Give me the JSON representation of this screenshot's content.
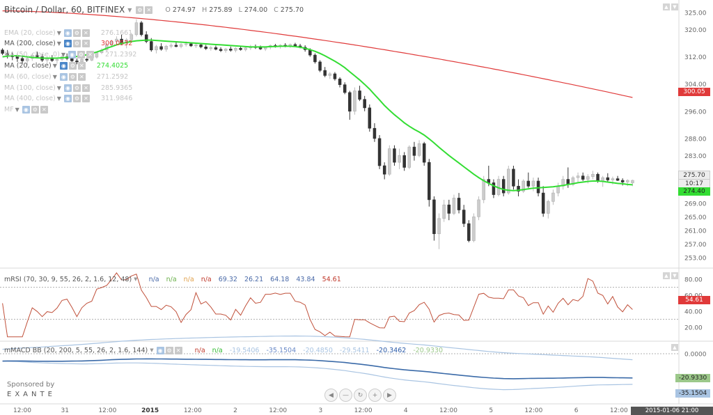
{
  "header": {
    "title": "Bitcoin / Dollar, 60, BITFINEX",
    "ohlc": {
      "o_label": "O",
      "o": "274.97",
      "h_label": "H",
      "h": "275.89",
      "l_label": "L",
      "l": "274.00",
      "c_label": "C",
      "c": "275.70"
    }
  },
  "legend": [
    {
      "name": "EMA (20, close)",
      "value": "276.1661",
      "faded": true
    },
    {
      "name": "MA (200, close)",
      "value": "300.0532",
      "faded": false,
      "color": "#e03a3a"
    },
    {
      "name": "MA (50, close, 0)",
      "value": "271.2392",
      "faded": true
    },
    {
      "name": "MA (20, close)",
      "value": "274.4025",
      "faded": false,
      "color": "#33dd33"
    },
    {
      "name": "MA (60, close)",
      "value": "271.2592",
      "faded": true
    },
    {
      "name": "MA (100, close)",
      "value": "285.9365",
      "faded": true
    },
    {
      "name": "MA (400, close)",
      "value": "311.9846",
      "faded": true
    },
    {
      "name": "MF",
      "value": "",
      "faded": true
    }
  ],
  "rsi_legend": {
    "name": "mRSI (70, 30, 9, 55, 26, 2, 1.6, 12, 48)",
    "values": [
      {
        "t": "n/a",
        "c": "#4a6aa8"
      },
      {
        "t": "n/a",
        "c": "#6ab04a"
      },
      {
        "t": "n/a",
        "c": "#e0a04a"
      },
      {
        "t": "n/a",
        "c": "#c0392b"
      },
      {
        "t": "69.32",
        "c": "#4a6aa8"
      },
      {
        "t": "26.21",
        "c": "#4a6aa8"
      },
      {
        "t": "64.18",
        "c": "#4a6aa8"
      },
      {
        "t": "43.84",
        "c": "#4a6aa8"
      },
      {
        "t": "54.61",
        "c": "#c0392b"
      }
    ]
  },
  "macd_legend": {
    "name": "mMACD BB (20, 200, 5, 55, 26, 2, 1.6, 144)",
    "values": [
      {
        "t": "n/a",
        "c": "#c0392b"
      },
      {
        "t": "n/a",
        "c": "#33bb33"
      },
      {
        "t": "-19.5406",
        "c": "#a9c4e2"
      },
      {
        "t": "-35.1504",
        "c": "#6a8ac8"
      },
      {
        "t": "-20.4850",
        "c": "#a9c4e2"
      },
      {
        "t": "-29.5411",
        "c": "#a9c4e2"
      },
      {
        "t": "-20.3462",
        "c": "#2a5aa8"
      },
      {
        "t": "-20.9330",
        "c": "#9cc88a"
      }
    ]
  },
  "sponsor": {
    "line1": "Sponsored by",
    "line2": "EXANTE"
  },
  "colors": {
    "ma200": "#e03a3a",
    "ma20": "#33dd33",
    "candle_up": "#cccccc",
    "candle_down": "#333333",
    "rsi": "#c0503a",
    "macd": "#3a6aa8",
    "bb": "#a9c4e2"
  },
  "price_labels": {
    "last": "275.70",
    "countdown": "10:17",
    "ma20": "274.40",
    "ma200": "300.05",
    "rsi": "54.61",
    "macd_a": "-20.9330",
    "macd_b": "-35.1504"
  },
  "time_cursor": "2015-01-06 21:00",
  "chart_data": {
    "type": "candlestick",
    "price_axis": {
      "ticks": [
        "325.00",
        "320.00",
        "312.00",
        "304.00",
        "296.00",
        "288.00",
        "283.00",
        "277.00",
        "269.00",
        "265.00",
        "261.00",
        "257.00",
        "253.00"
      ]
    },
    "rsi_axis": {
      "ticks": [
        "80.00",
        "60.00",
        "40.00",
        "20.00"
      ],
      "levels": [
        70,
        30
      ]
    },
    "macd_axis": {
      "ticks": [
        "0.0000"
      ]
    },
    "x_ticks": [
      "12:00",
      "31",
      "12:00",
      "2015",
      "12:00",
      "2",
      "12:00",
      "3",
      "12:00",
      "4",
      "12:00",
      "5",
      "12:00",
      "6",
      "12:00"
    ],
    "ohlc": [
      [
        314,
        314.5,
        312.5,
        313
      ],
      [
        313,
        314,
        311.5,
        312.5
      ],
      [
        312.5,
        313.5,
        311,
        312
      ],
      [
        312,
        313,
        310.5,
        311.5
      ],
      [
        311.5,
        312.5,
        310,
        310.8
      ],
      [
        310.8,
        312,
        309.5,
        311.5
      ],
      [
        311.5,
        313,
        310.8,
        312.5
      ],
      [
        312.5,
        313.5,
        311.5,
        312
      ],
      [
        312,
        312.8,
        310.5,
        311
      ],
      [
        311,
        312,
        310.2,
        311.6
      ],
      [
        311.6,
        312.5,
        310.5,
        310.9
      ],
      [
        310.9,
        311.8,
        310,
        311.2
      ],
      [
        311.2,
        312.5,
        310.8,
        312
      ],
      [
        312,
        313,
        311,
        311.5
      ],
      [
        311.5,
        312.3,
        310.5,
        310.8
      ],
      [
        310.8,
        311.5,
        309.8,
        310.5
      ],
      [
        310.5,
        311.8,
        310,
        311.3
      ],
      [
        311.3,
        312,
        310.5,
        311
      ],
      [
        311,
        312.2,
        310.7,
        311.9
      ],
      [
        311.9,
        313.5,
        311.5,
        313.2
      ],
      [
        313.2,
        314.5,
        312.8,
        314
      ],
      [
        314,
        316,
        313.5,
        315.5
      ],
      [
        315.5,
        317,
        314.8,
        316.5
      ],
      [
        316.5,
        318,
        315.5,
        317.2
      ],
      [
        317.2,
        318.5,
        315.5,
        316
      ],
      [
        316,
        317.5,
        314.5,
        317
      ],
      [
        317,
        319,
        316.5,
        318.5
      ],
      [
        318.5,
        323,
        318,
        322
      ],
      [
        322,
        322.5,
        318,
        318.5
      ],
      [
        318.5,
        319.5,
        316,
        316.5
      ],
      [
        316.5,
        317.5,
        313.5,
        314
      ],
      [
        314,
        315.5,
        313,
        315
      ],
      [
        315,
        316,
        313.8,
        314.2
      ],
      [
        314.2,
        315.5,
        313.5,
        315.1
      ],
      [
        315.1,
        316,
        314.5,
        315.4
      ],
      [
        315.4,
        316.2,
        314.8,
        315
      ],
      [
        315,
        316,
        314.5,
        315.6
      ],
      [
        315.6,
        316.5,
        315,
        315.8
      ],
      [
        315.8,
        316.3,
        314.9,
        315.2
      ],
      [
        315.2,
        316,
        314.6,
        315.5
      ],
      [
        315.5,
        316,
        314.5,
        314.9
      ],
      [
        314.9,
        315.5,
        314,
        314.4
      ],
      [
        314.4,
        315.2,
        313.8,
        314.7
      ],
      [
        314.7,
        315.3,
        313.9,
        314.2
      ],
      [
        314.2,
        314.8,
        313.4,
        313.8
      ],
      [
        313.8,
        314.6,
        313.2,
        314.3
      ],
      [
        314.3,
        315,
        313.5,
        313.9
      ],
      [
        313.9,
        314.8,
        313.3,
        314.5
      ],
      [
        314.5,
        315.2,
        313.8,
        314.1
      ],
      [
        314.1,
        314.9,
        313.6,
        314.6
      ],
      [
        314.6,
        315.5,
        314,
        315
      ],
      [
        315,
        315.6,
        314.3,
        314.7
      ],
      [
        314.7,
        315.3,
        314,
        314.3
      ],
      [
        314.3,
        315,
        313.7,
        314.8
      ],
      [
        314.8,
        315.6,
        314.2,
        315.3
      ],
      [
        315.3,
        315.8,
        314.7,
        315
      ],
      [
        315,
        315.7,
        314.4,
        315.4
      ],
      [
        315.4,
        316,
        314.8,
        315.1
      ],
      [
        315.1,
        315.9,
        314.6,
        315.6
      ],
      [
        315.6,
        316.1,
        315,
        315.2
      ],
      [
        315.2,
        315.8,
        314.5,
        314.8
      ],
      [
        314.8,
        315.4,
        313.5,
        314.1
      ],
      [
        314.1,
        314.5,
        312,
        312.5
      ],
      [
        312.5,
        313,
        310,
        310.5
      ],
      [
        310.5,
        311,
        307.5,
        308
      ],
      [
        308,
        309,
        306,
        306.5
      ],
      [
        306.5,
        307.5,
        305.5,
        307
      ],
      [
        307,
        307.5,
        305,
        305.5
      ],
      [
        305.5,
        306,
        303,
        303.8
      ],
      [
        303.8,
        304.5,
        301,
        301.5
      ],
      [
        301.5,
        302,
        293.5,
        296
      ],
      [
        296,
        303,
        295,
        302
      ],
      [
        302,
        303.5,
        299,
        299.5
      ],
      [
        299.5,
        300.5,
        296,
        297
      ],
      [
        297,
        298,
        290,
        291
      ],
      [
        291,
        292.5,
        287,
        288
      ],
      [
        288,
        289,
        279,
        280
      ],
      [
        280,
        281,
        276,
        277.5
      ],
      [
        277.5,
        286,
        277,
        285
      ],
      [
        285,
        286,
        280,
        281
      ],
      [
        281,
        285,
        279,
        283
      ],
      [
        283,
        284,
        278.5,
        279.5
      ],
      [
        279.5,
        286,
        279,
        285.5
      ],
      [
        285.5,
        287,
        281.5,
        283
      ],
      [
        283,
        287.5,
        282.5,
        286.5
      ],
      [
        286.5,
        287,
        280,
        281
      ],
      [
        281,
        282,
        268,
        270
      ],
      [
        270,
        271,
        258,
        260
      ],
      [
        260,
        266,
        255.5,
        264.5
      ],
      [
        264.5,
        270,
        263.5,
        268.5
      ],
      [
        268.5,
        270,
        264,
        266
      ],
      [
        266,
        271.5,
        265.5,
        270.5
      ],
      [
        270.5,
        272,
        266,
        267
      ],
      [
        267,
        268.5,
        262,
        263
      ],
      [
        263,
        264,
        257.5,
        258
      ],
      [
        258,
        266,
        257.5,
        265
      ],
      [
        265,
        271,
        264,
        270
      ],
      [
        270,
        277,
        269,
        276
      ],
      [
        276,
        280,
        274,
        275
      ],
      [
        275,
        276,
        270.5,
        271.5
      ],
      [
        271.5,
        277,
        271,
        276
      ],
      [
        276,
        277,
        271,
        272
      ],
      [
        272,
        280,
        271.5,
        279
      ],
      [
        279,
        280,
        273,
        274
      ],
      [
        274,
        276,
        271,
        272.5
      ],
      [
        272.5,
        276,
        272,
        275.5
      ],
      [
        275.5,
        278,
        273.5,
        274
      ],
      [
        274,
        276.5,
        272.5,
        275.5
      ],
      [
        275.5,
        276.5,
        271,
        272
      ],
      [
        272,
        274,
        265,
        266
      ],
      [
        266,
        270,
        264.5,
        269.5
      ],
      [
        269.5,
        273,
        268.5,
        272
      ],
      [
        272,
        275,
        271,
        274
      ],
      [
        274,
        277,
        273,
        276
      ],
      [
        276,
        279.5,
        273.5,
        274.5
      ],
      [
        274.5,
        277,
        274,
        276.5
      ],
      [
        276.5,
        278,
        275,
        277
      ],
      [
        277,
        278,
        275.5,
        276
      ],
      [
        276,
        277.5,
        274.8,
        276.8
      ],
      [
        276.8,
        278.5,
        276,
        277.5
      ],
      [
        277.5,
        278,
        275,
        275.5
      ],
      [
        275.5,
        277,
        273.8,
        276.5
      ],
      [
        276.5,
        277.8,
        275.2,
        275.8
      ],
      [
        275.8,
        276.8,
        274.5,
        276.2
      ],
      [
        276.2,
        277,
        275.5,
        275.7
      ],
      [
        275.7,
        276.3,
        274.2,
        275.2
      ],
      [
        275.2,
        276,
        274,
        275.7
      ],
      [
        274.97,
        275.89,
        274,
        275.7
      ]
    ],
    "ma20": [
      312,
      312.2,
      312.3,
      312.3,
      312.2,
      312,
      311.8,
      311.7,
      311.6,
      311.6,
      311.6,
      311.6,
      311.7,
      311.8,
      311.9,
      312.1,
      312.3,
      312.6,
      313,
      313.4,
      313.9,
      314.5,
      315,
      315.5,
      315.9,
      316.2,
      316.5,
      316.7,
      316.8,
      316.9,
      316.9,
      316.8,
      316.7,
      316.6,
      316.5,
      316.4,
      316.3,
      316.2,
      316.1,
      316,
      315.9,
      315.8,
      315.7,
      315.6,
      315.5,
      315.4,
      315.3,
      315.2,
      315.1,
      315,
      314.9,
      314.9,
      314.9,
      314.9,
      315,
      315,
      315.1,
      315.1,
      315.1,
      315,
      314.8,
      314.5,
      314.1,
      313.6,
      313,
      312.3,
      311.5,
      310.7,
      309.8,
      308.8,
      307.6,
      306.4,
      305.2,
      303.9,
      302.5,
      300.9,
      299.3,
      297.7,
      296.3,
      295,
      293.8,
      292.6,
      291.6,
      290.7,
      289.9,
      289,
      287.9,
      286.7,
      285.4,
      284.2,
      283,
      281.9,
      280.8,
      279.7,
      278.6,
      277.5,
      276.5,
      275.6,
      274.8,
      274.1,
      273.5,
      273,
      272.8,
      272.7,
      272.8,
      273,
      273.2,
      273.4,
      273.5,
      273.6,
      273.7,
      273.8,
      274,
      274.2,
      274.5,
      274.7,
      275,
      275.2,
      275.4,
      275.5,
      275.5,
      275.4,
      275.2,
      275,
      274.8,
      274.7,
      274.5,
      274.4
    ],
    "ma200_range": [
      325.5,
      300.05
    ]
  }
}
